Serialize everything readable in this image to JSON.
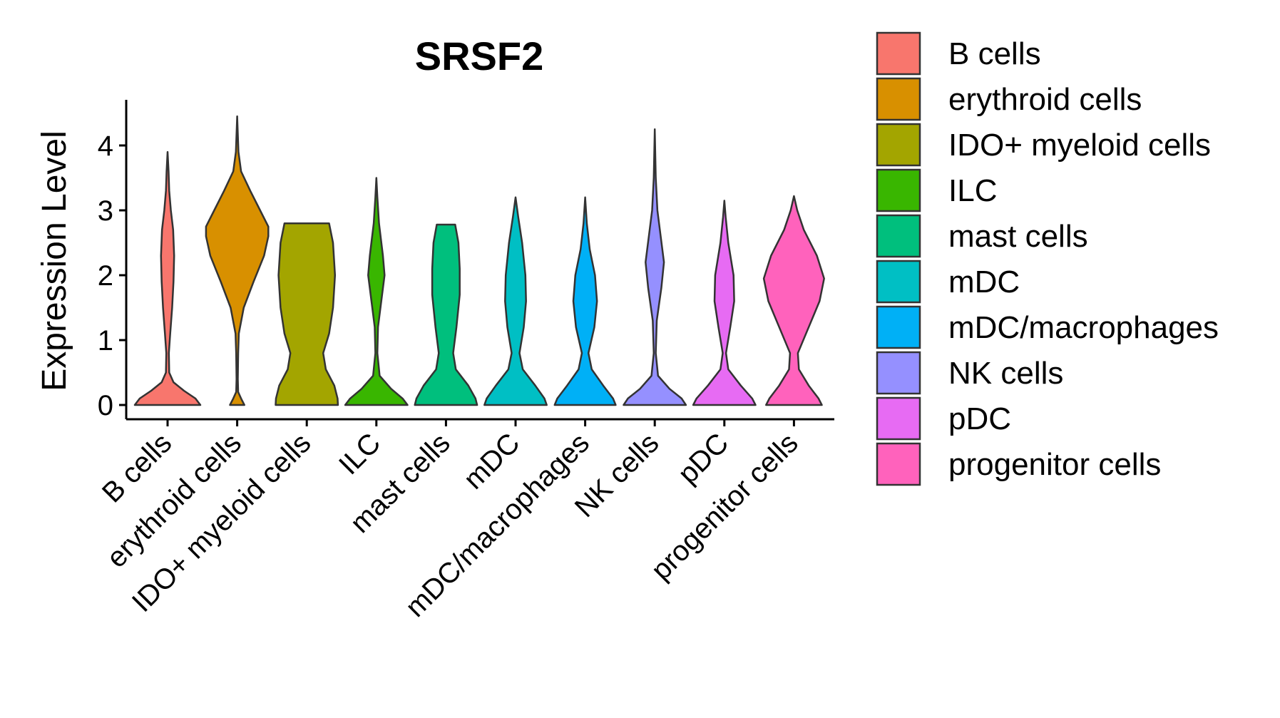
{
  "chart_data": {
    "type": "violin",
    "title": "SRSF2",
    "xlabel": "",
    "ylabel": "Expression Level",
    "ylim": [
      0,
      4.7
    ],
    "yticks": [
      0,
      1,
      2,
      3,
      4
    ],
    "categories": [
      "B cells",
      "erythroid cells",
      "IDO+ myeloid cells",
      "ILC",
      "mast cells",
      "mDC",
      "mDC/macrophages",
      "NK cells",
      "pDC",
      "progenitor cells"
    ],
    "colors": [
      "#F8766D",
      "#D89000",
      "#A3A500",
      "#39B600",
      "#00BF7D",
      "#00BFC4",
      "#00B0F6",
      "#9590FF",
      "#E76BF3",
      "#FF62BC"
    ],
    "violins": [
      {
        "name": "B cells",
        "max": 3.9,
        "profile": [
          [
            0,
            1.0
          ],
          [
            0.1,
            0.85
          ],
          [
            0.22,
            0.5
          ],
          [
            0.35,
            0.18
          ],
          [
            0.5,
            0.05
          ],
          [
            0.8,
            0.04
          ],
          [
            1.1,
            0.08
          ],
          [
            1.5,
            0.14
          ],
          [
            1.9,
            0.18
          ],
          [
            2.3,
            0.2
          ],
          [
            2.7,
            0.17
          ],
          [
            3.0,
            0.1
          ],
          [
            3.3,
            0.05
          ],
          [
            3.6,
            0.03
          ],
          [
            3.9,
            0.0
          ]
        ]
      },
      {
        "name": "erythroid cells",
        "max": 4.45,
        "profile": [
          [
            0,
            0.22
          ],
          [
            0.1,
            0.12
          ],
          [
            0.2,
            0.03
          ],
          [
            0.4,
            0.02
          ],
          [
            0.8,
            0.03
          ],
          [
            1.1,
            0.05
          ],
          [
            1.5,
            0.2
          ],
          [
            1.9,
            0.5
          ],
          [
            2.3,
            0.82
          ],
          [
            2.6,
            0.95
          ],
          [
            2.75,
            0.95
          ],
          [
            3.0,
            0.7
          ],
          [
            3.3,
            0.4
          ],
          [
            3.6,
            0.12
          ],
          [
            3.9,
            0.04
          ],
          [
            4.45,
            0.0
          ]
        ]
      },
      {
        "name": "IDO+ myeloid cells",
        "max": 2.8,
        "profile": [
          [
            0,
            0.95
          ],
          [
            0.1,
            0.94
          ],
          [
            0.3,
            0.84
          ],
          [
            0.55,
            0.58
          ],
          [
            0.8,
            0.5
          ],
          [
            1.1,
            0.68
          ],
          [
            1.5,
            0.8
          ],
          [
            2.0,
            0.86
          ],
          [
            2.5,
            0.8
          ],
          [
            2.8,
            0.68
          ]
        ]
      },
      {
        "name": "ILC",
        "max": 3.5,
        "profile": [
          [
            0,
            0.95
          ],
          [
            0.1,
            0.8
          ],
          [
            0.25,
            0.45
          ],
          [
            0.45,
            0.1
          ],
          [
            0.8,
            0.03
          ],
          [
            1.2,
            0.05
          ],
          [
            1.6,
            0.15
          ],
          [
            2.0,
            0.25
          ],
          [
            2.3,
            0.2
          ],
          [
            2.8,
            0.08
          ],
          [
            3.2,
            0.03
          ],
          [
            3.5,
            0.0
          ]
        ]
      },
      {
        "name": "mast cells",
        "max": 2.78,
        "profile": [
          [
            0,
            0.95
          ],
          [
            0.1,
            0.9
          ],
          [
            0.3,
            0.68
          ],
          [
            0.55,
            0.3
          ],
          [
            0.8,
            0.22
          ],
          [
            1.2,
            0.32
          ],
          [
            1.7,
            0.42
          ],
          [
            2.1,
            0.42
          ],
          [
            2.5,
            0.38
          ],
          [
            2.78,
            0.28
          ]
        ]
      },
      {
        "name": "mDC",
        "max": 3.2,
        "profile": [
          [
            0,
            0.95
          ],
          [
            0.1,
            0.88
          ],
          [
            0.3,
            0.6
          ],
          [
            0.55,
            0.22
          ],
          [
            0.8,
            0.12
          ],
          [
            1.2,
            0.25
          ],
          [
            1.6,
            0.32
          ],
          [
            2.0,
            0.3
          ],
          [
            2.5,
            0.2
          ],
          [
            2.9,
            0.08
          ],
          [
            3.2,
            0.0
          ]
        ]
      },
      {
        "name": "mDC/macrophages",
        "max": 3.2,
        "profile": [
          [
            0,
            0.93
          ],
          [
            0.1,
            0.85
          ],
          [
            0.3,
            0.55
          ],
          [
            0.55,
            0.2
          ],
          [
            0.8,
            0.1
          ],
          [
            1.2,
            0.28
          ],
          [
            1.6,
            0.36
          ],
          [
            2.0,
            0.3
          ],
          [
            2.4,
            0.14
          ],
          [
            2.8,
            0.05
          ],
          [
            3.2,
            0.0
          ]
        ]
      },
      {
        "name": "NK cells",
        "max": 4.25,
        "profile": [
          [
            0,
            0.95
          ],
          [
            0.1,
            0.82
          ],
          [
            0.25,
            0.45
          ],
          [
            0.45,
            0.1
          ],
          [
            0.8,
            0.03
          ],
          [
            1.3,
            0.06
          ],
          [
            1.8,
            0.2
          ],
          [
            2.2,
            0.28
          ],
          [
            2.6,
            0.18
          ],
          [
            3.0,
            0.08
          ],
          [
            3.5,
            0.03
          ],
          [
            4.25,
            0.0
          ]
        ]
      },
      {
        "name": "pDC",
        "max": 3.15,
        "profile": [
          [
            0,
            0.95
          ],
          [
            0.1,
            0.85
          ],
          [
            0.3,
            0.5
          ],
          [
            0.55,
            0.12
          ],
          [
            0.8,
            0.05
          ],
          [
            1.2,
            0.18
          ],
          [
            1.6,
            0.3
          ],
          [
            2.0,
            0.28
          ],
          [
            2.5,
            0.12
          ],
          [
            2.9,
            0.04
          ],
          [
            3.15,
            0.0
          ]
        ]
      },
      {
        "name": "progenitor cells",
        "max": 3.22,
        "profile": [
          [
            0,
            0.85
          ],
          [
            0.1,
            0.75
          ],
          [
            0.3,
            0.45
          ],
          [
            0.55,
            0.15
          ],
          [
            0.8,
            0.12
          ],
          [
            1.2,
            0.45
          ],
          [
            1.6,
            0.78
          ],
          [
            1.95,
            0.92
          ],
          [
            2.3,
            0.7
          ],
          [
            2.7,
            0.3
          ],
          [
            3.0,
            0.1
          ],
          [
            3.22,
            0.0
          ]
        ]
      }
    ],
    "legend_placement": "right"
  }
}
